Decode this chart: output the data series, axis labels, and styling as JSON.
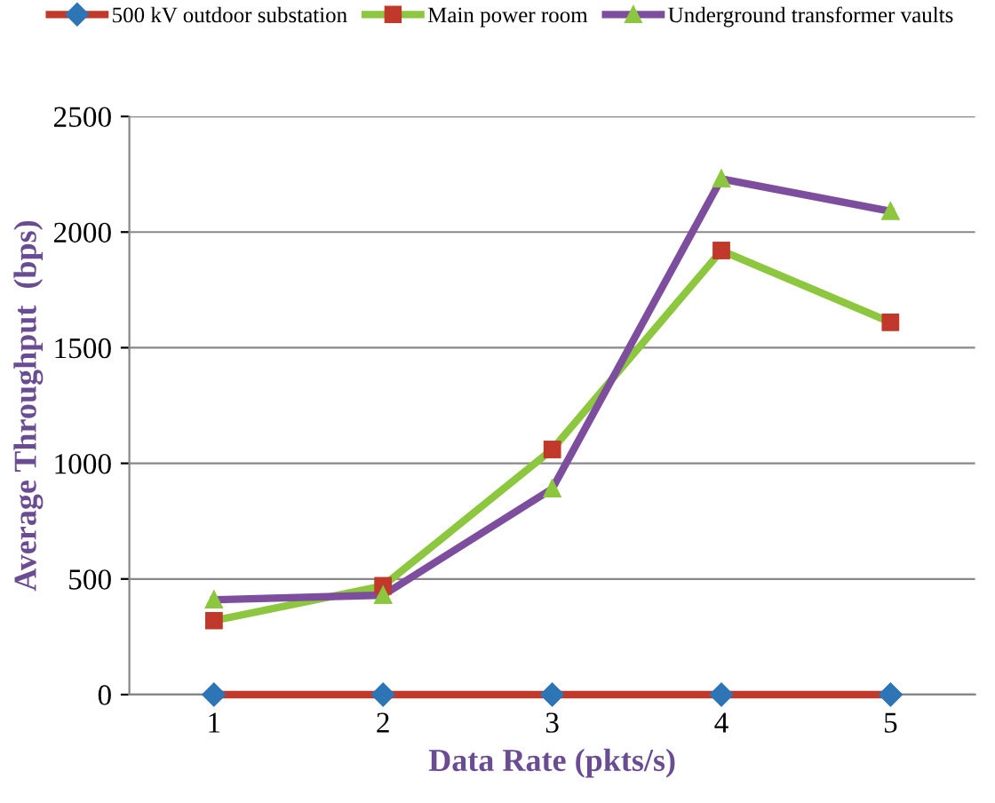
{
  "chart_data": {
    "type": "line",
    "xlabel": "Data Rate (pkts/s)",
    "ylabel": "Average Throughput  (bps)",
    "categories": [
      "1",
      "2",
      "3",
      "4",
      "5"
    ],
    "series": [
      {
        "name": "500 kV outdoor substation",
        "color": "#c0392b",
        "marker": "diamond",
        "colors": [
          "#2e75b6",
          "#2e75b6",
          "#2e75b6",
          "#2e75b6",
          "#2e75b6"
        ],
        "values": [
          0,
          0,
          0,
          0,
          0
        ]
      },
      {
        "name": "Main power room",
        "color": "#8dc63f",
        "marker": "square",
        "colors": [
          "#c0392b",
          "#c0392b",
          "#c0392b",
          "#c0392b",
          "#c0392b"
        ],
        "values": [
          320,
          470,
          1060,
          1920,
          1610
        ]
      },
      {
        "name": "Underground transformer vaults",
        "color": "#7d4e9e",
        "marker": "triangle",
        "colors": [
          "#8dc63f",
          "#8dc63f",
          "#8dc63f",
          "#8dc63f",
          "#8dc63f"
        ],
        "values": [
          410,
          430,
          890,
          2230,
          2090
        ]
      }
    ],
    "ylim": [
      0,
      2500
    ],
    "yticks": [
      0,
      500,
      1000,
      1500,
      2000,
      2500
    ],
    "grid": "y",
    "legend": "top"
  }
}
